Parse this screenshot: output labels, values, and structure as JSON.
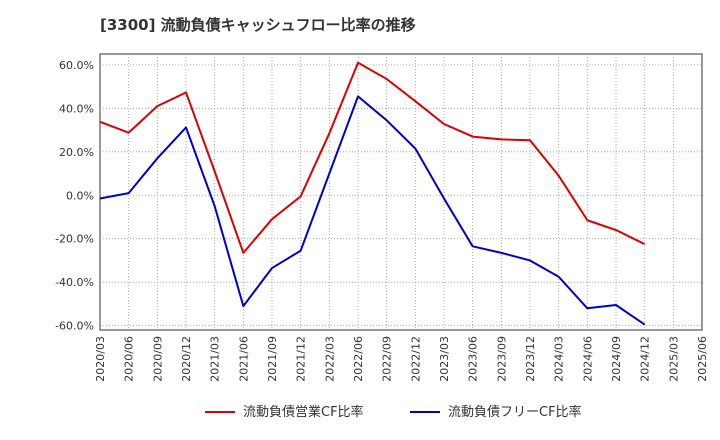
{
  "chart_data": {
    "type": "line",
    "title": "[3300]  流動負債キャッシュフロー比率の推移",
    "xlabel": "",
    "ylabel": "",
    "ylim": [
      -62,
      65
    ],
    "yticks": [
      60,
      40,
      20,
      0,
      -20,
      -40,
      -60
    ],
    "ytick_labels": [
      "60.0%",
      "40.0%",
      "20.0%",
      "0.0%",
      "-20.0%",
      "-40.0%",
      "-60.0%"
    ],
    "x_ticks": [
      "2020/03",
      "2020/06",
      "2020/09",
      "2020/12",
      "2021/03",
      "2021/06",
      "2021/09",
      "2021/12",
      "2022/03",
      "2022/06",
      "2022/09",
      "2022/12",
      "2023/03",
      "2023/06",
      "2023/09",
      "2023/12",
      "2024/03",
      "2024/06",
      "2024/09",
      "2024/12",
      "2025/03",
      "2025/06"
    ],
    "grid": true,
    "legend_position": "bottom",
    "series": [
      {
        "name": "流動負債営業CF比率",
        "color": "#dd0000",
        "values": [
          33.8,
          28.8,
          41.0,
          47.3,
          11.0,
          -26.5,
          -11.0,
          -0.5,
          28.5,
          61.0,
          53.5,
          43.3,
          32.8,
          27.0,
          25.7,
          25.3,
          9.0,
          -11.5,
          -16.0,
          -22.5
        ]
      },
      {
        "name": "流動負債フリーCF比率",
        "color": "#0000cc",
        "values": [
          -1.5,
          1.0,
          17.0,
          31.2,
          -5.0,
          -51.0,
          -33.5,
          -25.5,
          10.0,
          45.5,
          34.5,
          21.5,
          -1.5,
          -23.5,
          -26.5,
          -30.0,
          -37.5,
          -52.0,
          -50.5,
          -59.5
        ]
      }
    ]
  }
}
